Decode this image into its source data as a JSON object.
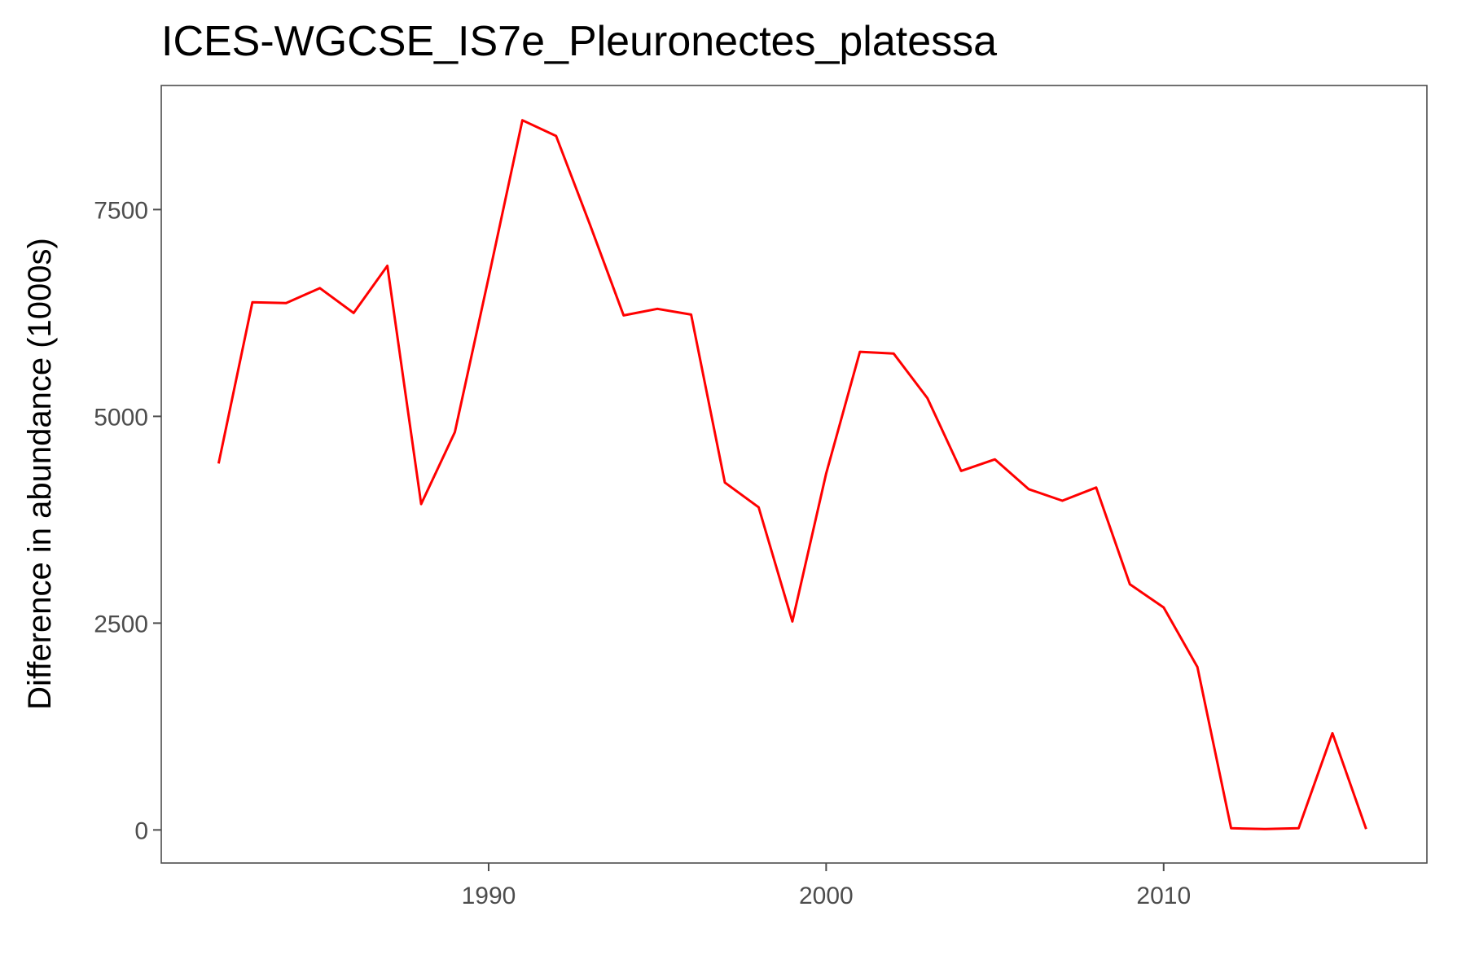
{
  "chart_data": {
    "type": "line",
    "title": "ICES-WGCSE_IS7e_Pleuronectes_platessa",
    "xlabel": "",
    "ylabel": "Difference in abundance (1000s)",
    "xlim": [
      1980.3,
      2017.8
    ],
    "ylim": [
      -400,
      9000
    ],
    "x_ticks": [
      1990,
      2000,
      2010
    ],
    "y_ticks": [
      0,
      2500,
      5000,
      7500
    ],
    "grid": false,
    "series_color": "#ff0000",
    "series": [
      {
        "x": [
          1982,
          1983,
          1984,
          1985,
          1986,
          1987,
          1988,
          1989,
          1990,
          1991,
          1992,
          1993,
          1994,
          1995,
          1996,
          1997,
          1998,
          1999,
          2000,
          2001,
          2002,
          2003,
          2004,
          2005,
          2006,
          2007,
          2008,
          2009,
          2010,
          2011,
          2012,
          2013,
          2014,
          2015,
          2016
        ],
        "values": [
          4430,
          6380,
          6370,
          6550,
          6250,
          6820,
          3940,
          4810,
          6680,
          8580,
          8390,
          7320,
          6220,
          6300,
          6230,
          4200,
          3900,
          2520,
          4310,
          5780,
          5760,
          5220,
          4340,
          4480,
          4120,
          3980,
          4140,
          2970,
          2690,
          1970,
          20,
          10,
          20,
          1170,
          10
        ]
      }
    ]
  }
}
